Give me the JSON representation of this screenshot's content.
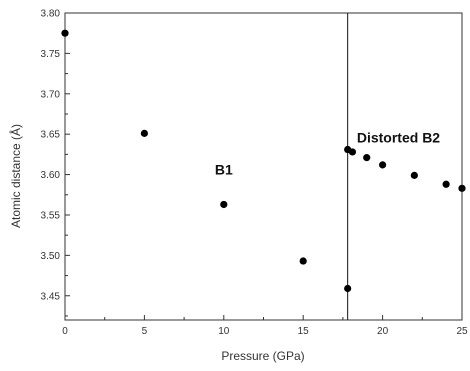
{
  "chart_data": {
    "type": "scatter",
    "xlabel": "Pressure (GPa)",
    "ylabel": "Atomic distance (Å)",
    "xlim": [
      0,
      25
    ],
    "ylim": [
      3.42,
      3.8
    ],
    "x_ticks": [
      0,
      5,
      10,
      15,
      20,
      25
    ],
    "x_tick_labels": [
      "0",
      "5",
      "10",
      "15",
      "20",
      "25"
    ],
    "y_ticks": [
      3.45,
      3.5,
      3.55,
      3.6,
      3.65,
      3.7,
      3.75,
      3.8
    ],
    "y_tick_labels": [
      "3.45",
      "3.50",
      "3.55",
      "3.60",
      "3.65",
      "3.70",
      "3.75",
      "3.80"
    ],
    "grid": false,
    "legend": false,
    "series": [
      {
        "points": [
          {
            "x": 0,
            "y": 3.775
          },
          {
            "x": 5,
            "y": 3.651
          },
          {
            "x": 10,
            "y": 3.563
          },
          {
            "x": 15,
            "y": 3.493
          },
          {
            "x": 17.8,
            "y": 3.459
          },
          {
            "x": 17.8,
            "y": 3.631
          },
          {
            "x": 18.1,
            "y": 3.628
          },
          {
            "x": 19,
            "y": 3.621
          },
          {
            "x": 20,
            "y": 3.612
          },
          {
            "x": 22,
            "y": 3.599
          },
          {
            "x": 24,
            "y": 3.588
          },
          {
            "x": 25,
            "y": 3.583
          }
        ],
        "color": "#000000"
      }
    ],
    "vertical_line": {
      "x": 17.8
    },
    "annotations": [
      {
        "text": "B1",
        "x": 10,
        "y": 3.6
      },
      {
        "text": "Distorted B2",
        "x": 21,
        "y": 3.64
      }
    ]
  }
}
